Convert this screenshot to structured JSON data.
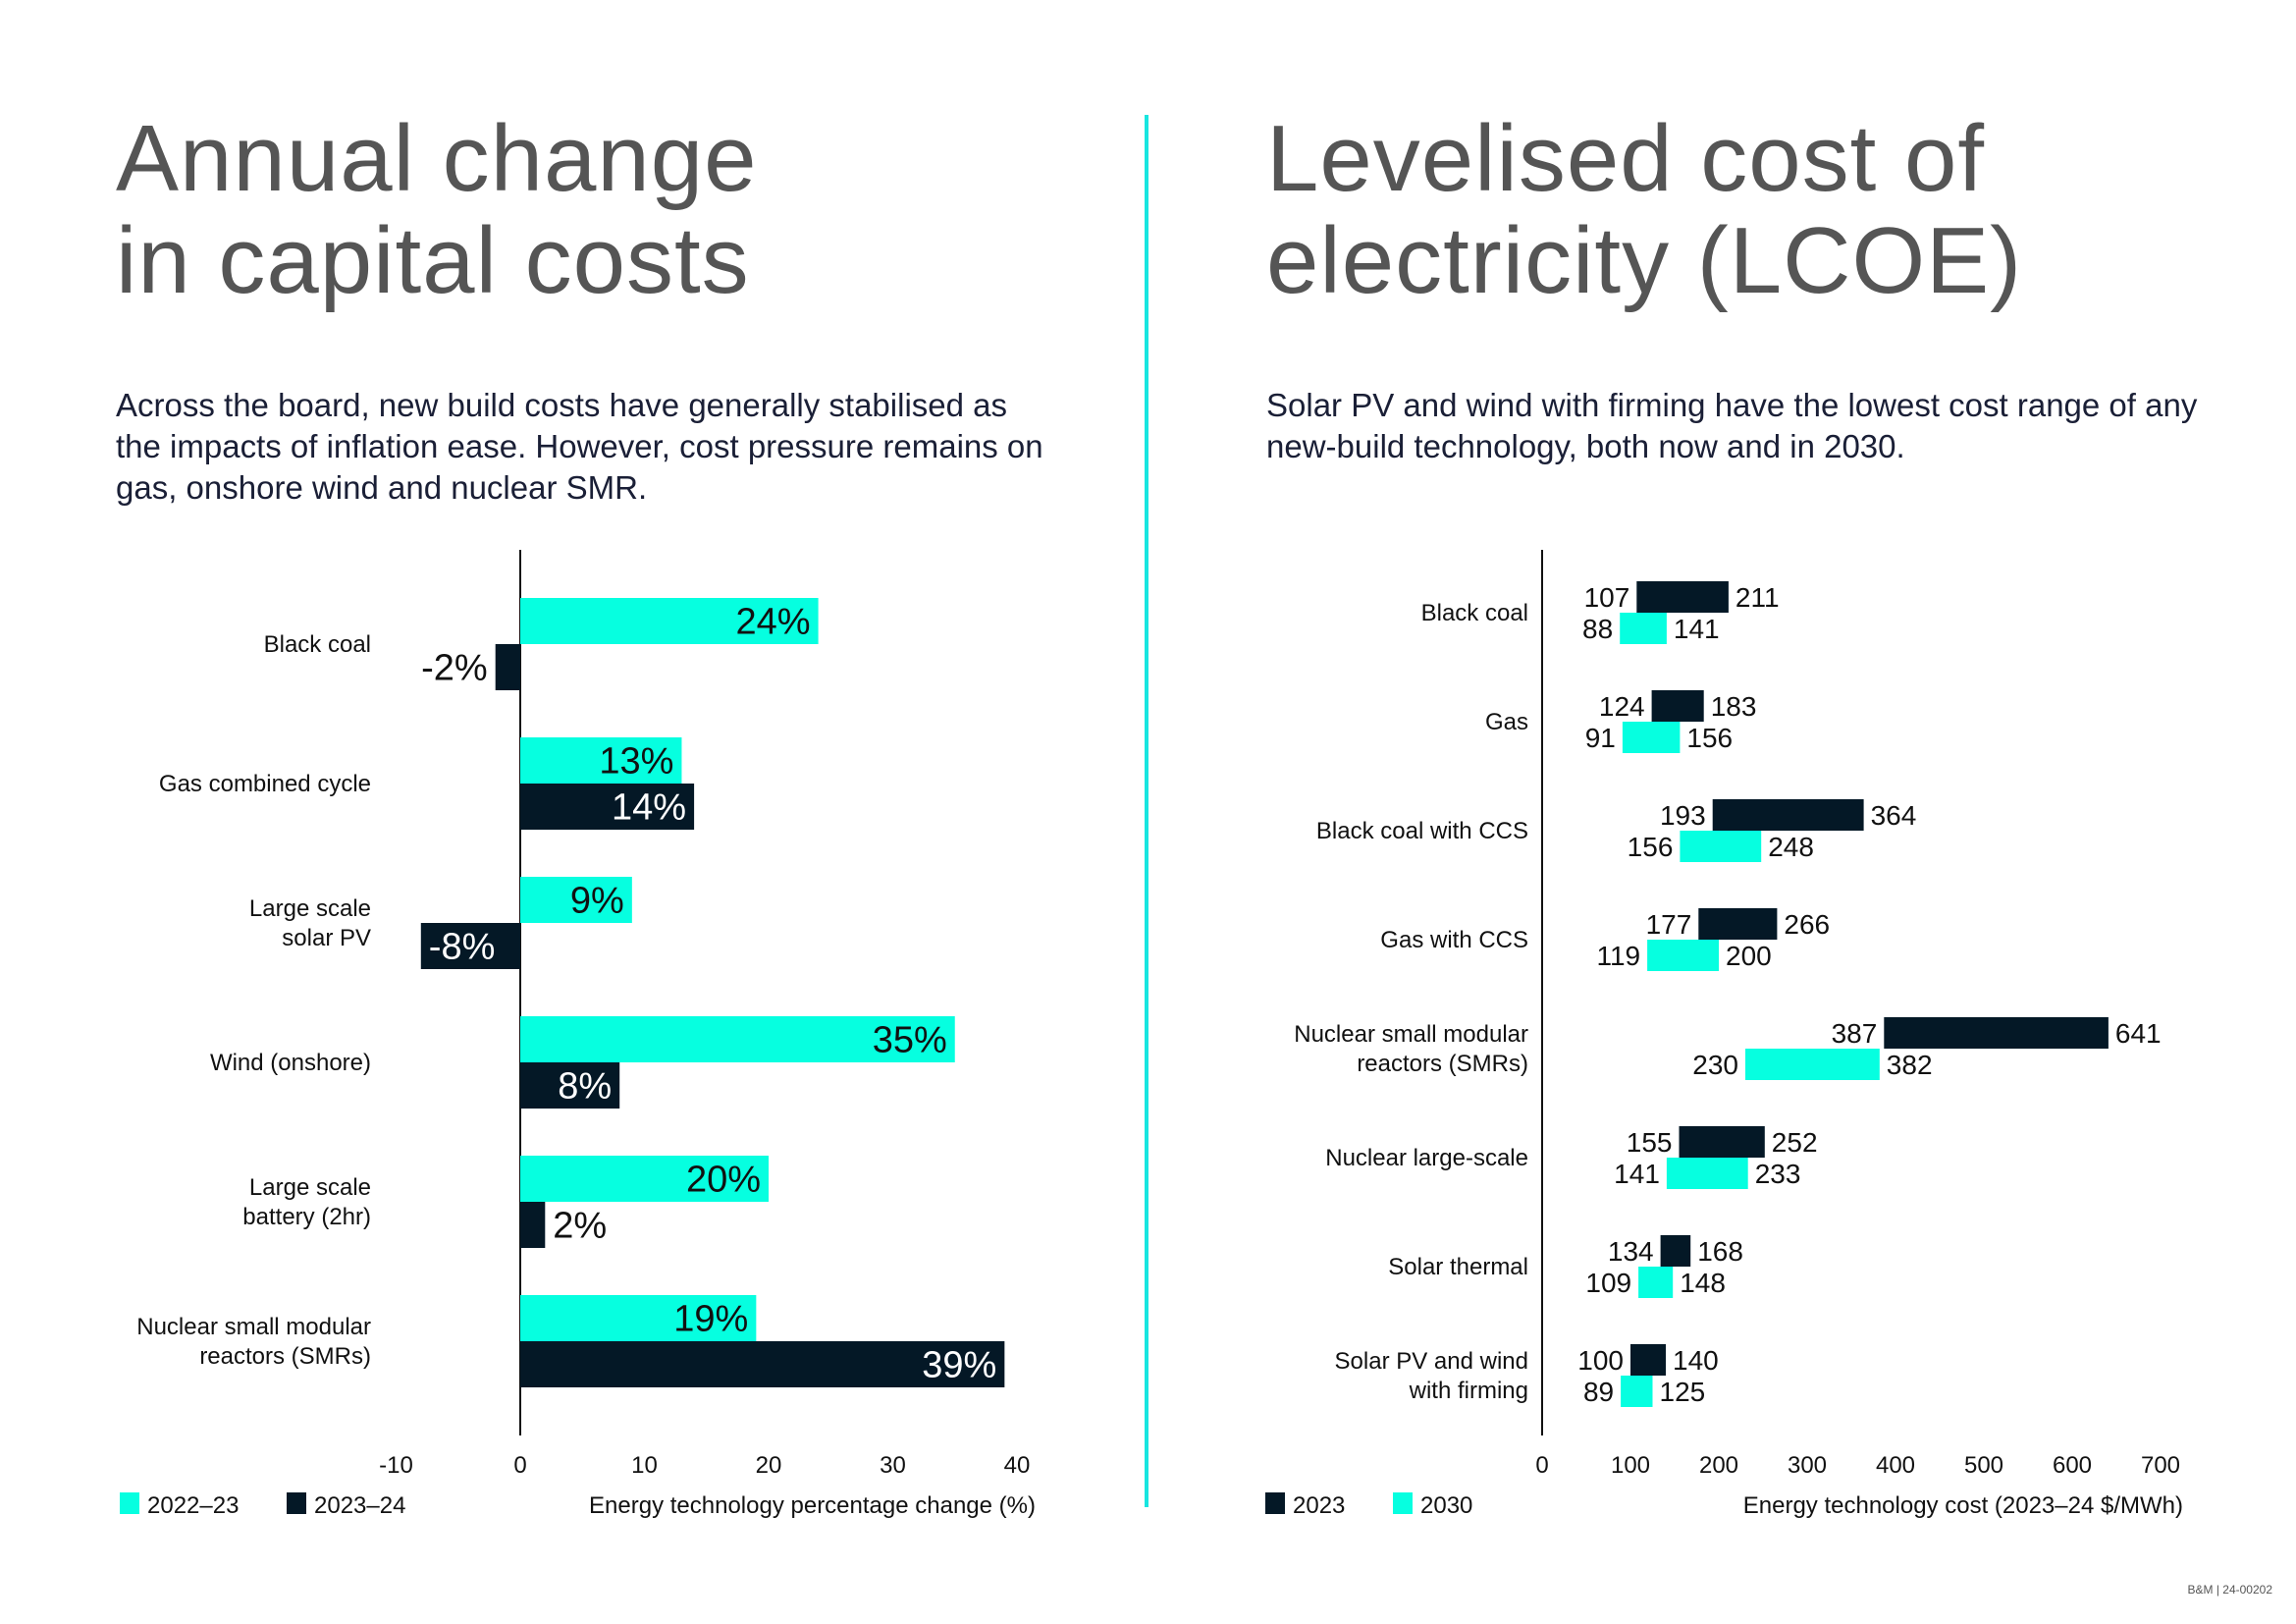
{
  "left": {
    "title_lines": [
      "Annual change",
      "in capital costs"
    ],
    "intro": "Across the board, new build costs have generally stabilised as the impacts of inflation ease. However, cost pressure remains on gas, onshore wind and nuclear SMR."
  },
  "right": {
    "title_lines": [
      "Levelised cost of",
      "electricity (LCOE)"
    ],
    "intro": "Solar PV and wind with firming have the lowest cost range of any new-build technology, both now and in 2030."
  },
  "colors": {
    "cyan": "#06FFE0",
    "navy": "#041826",
    "divider": "#18E6E0",
    "title_grey": "#555555"
  },
  "footer": "B&M | 24-00202",
  "chart_data": [
    {
      "type": "bar",
      "orientation": "horizontal",
      "title": "Annual change in capital costs",
      "xlabel": "Energy technology percentage change (%)",
      "ylabel": "",
      "xlim": [
        -10,
        40
      ],
      "x_ticks": [
        -10,
        0,
        10,
        20,
        30,
        40
      ],
      "x_tick_labels": [
        "-10",
        "0",
        "10",
        "20",
        "30",
        "40"
      ],
      "grid": false,
      "legend_position": "bottom-left",
      "categories": [
        [
          "Black coal"
        ],
        [
          "Gas combined cycle"
        ],
        [
          "Large scale",
          "solar PV"
        ],
        [
          "Wind (onshore)"
        ],
        [
          "Large scale",
          "battery (2hr)"
        ],
        [
          "Nuclear small modular",
          "reactors (SMRs)"
        ]
      ],
      "series": [
        {
          "name": "2022–23",
          "color_key": "cyan",
          "values": [
            24,
            13,
            9,
            35,
            20,
            19
          ],
          "labels": [
            "24%",
            "13%",
            "9%",
            "35%",
            "20%",
            "19%"
          ]
        },
        {
          "name": "2023–24",
          "color_key": "navy",
          "values": [
            -2,
            14,
            -8,
            8,
            2,
            39
          ],
          "labels": [
            "-2%",
            "14%",
            "-8%",
            "8%",
            "2%",
            "39%"
          ]
        }
      ]
    },
    {
      "type": "bar",
      "orientation": "horizontal-range",
      "title": "Levelised cost of electricity (LCOE)",
      "xlabel": "Energy technology cost (2023–24 $/MWh)",
      "ylabel": "",
      "xlim": [
        0,
        700
      ],
      "x_ticks": [
        0,
        100,
        200,
        300,
        400,
        500,
        600,
        700
      ],
      "x_tick_labels": [
        "0",
        "100",
        "200",
        "300",
        "400",
        "500",
        "600",
        "700"
      ],
      "grid": false,
      "legend_position": "bottom-left",
      "categories": [
        [
          "Black coal"
        ],
        [
          "Gas"
        ],
        [
          "Black coal with CCS"
        ],
        [
          "Gas with CCS"
        ],
        [
          "Nuclear small modular",
          "reactors (SMRs)"
        ],
        [
          "Nuclear large-scale"
        ],
        [
          "Solar thermal"
        ],
        [
          "Solar PV and wind",
          "with firming"
        ]
      ],
      "series": [
        {
          "name": "2023",
          "color_key": "navy",
          "ranges": [
            [
              107,
              211
            ],
            [
              124,
              183
            ],
            [
              193,
              364
            ],
            [
              177,
              266
            ],
            [
              387,
              641
            ],
            [
              155,
              252
            ],
            [
              134,
              168
            ],
            [
              100,
              140
            ]
          ]
        },
        {
          "name": "2030",
          "color_key": "cyan",
          "ranges": [
            [
              88,
              141
            ],
            [
              91,
              156
            ],
            [
              156,
              248
            ],
            [
              119,
              200
            ],
            [
              230,
              382
            ],
            [
              141,
              233
            ],
            [
              109,
              148
            ],
            [
              89,
              125
            ]
          ]
        }
      ]
    }
  ]
}
